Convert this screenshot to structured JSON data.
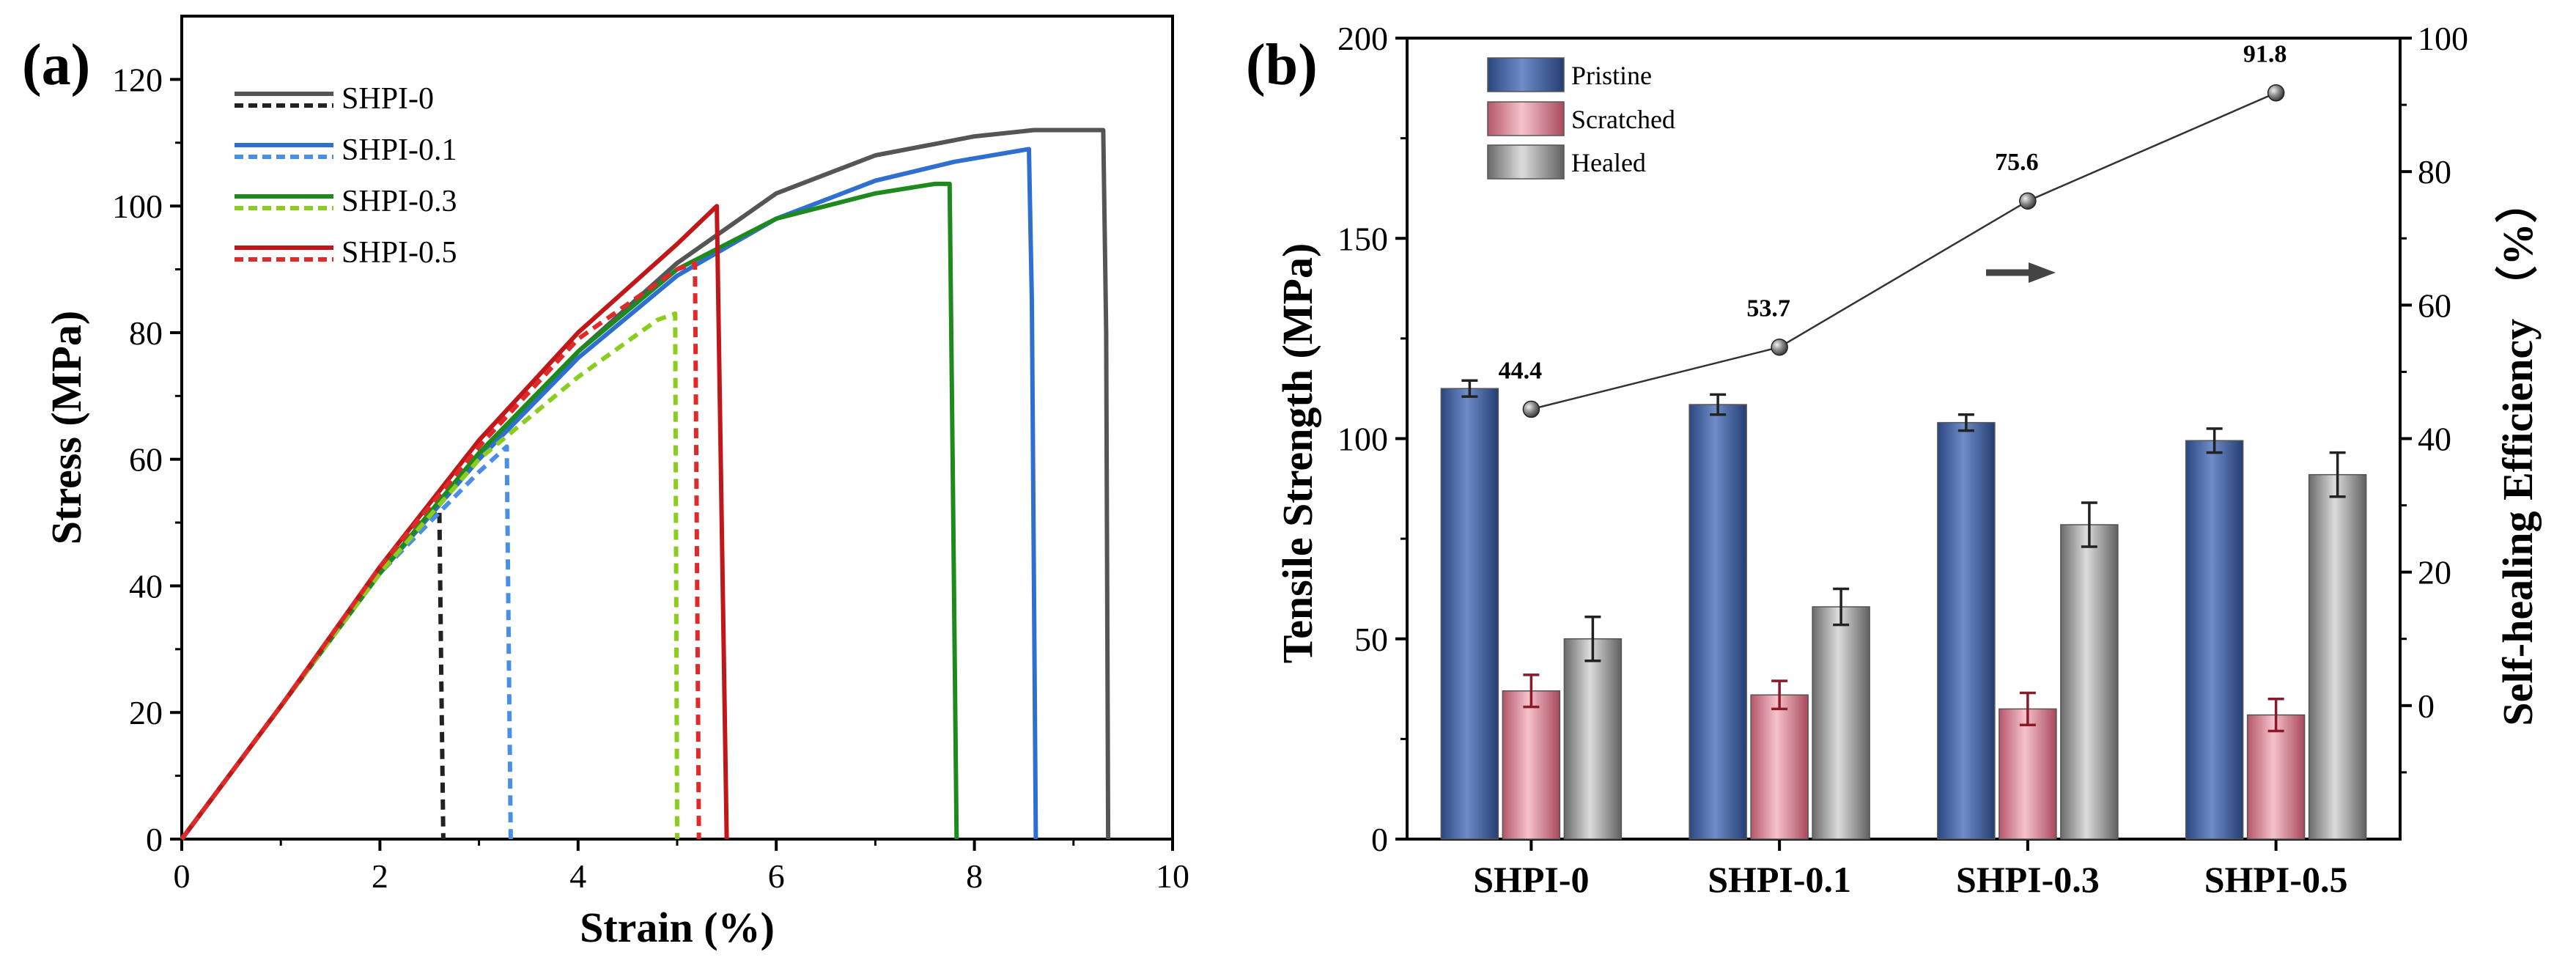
{
  "panel_a_label": "(a)",
  "panel_b_label": "(b)",
  "chart_data": [
    {
      "type": "line",
      "title": "",
      "xlabel": "Strain (%)",
      "ylabel": "Stress (MPa)",
      "xlim": [
        0,
        10
      ],
      "ylim": [
        0,
        130
      ],
      "xticks": [
        0,
        2,
        4,
        6,
        8,
        10
      ],
      "yticks": [
        0,
        20,
        40,
        60,
        80,
        100,
        120
      ],
      "legend": [
        {
          "name": "SHPI-0",
          "solid_color": "#555555",
          "dashed_color": "#222222"
        },
        {
          "name": "SHPI-0.1",
          "solid_color": "#2e6fd0",
          "dashed_color": "#4a8fe6"
        },
        {
          "name": "SHPI-0.3",
          "solid_color": "#1e8a1e",
          "dashed_color": "#8acd1e"
        },
        {
          "name": "SHPI-0.5",
          "solid_color": "#c01818",
          "dashed_color": "#e02a2a"
        }
      ],
      "series": [
        {
          "name": "SHPI-0",
          "style": "solid",
          "color": "#555555",
          "x": [
            0,
            1,
            2,
            3,
            4,
            5,
            6,
            7,
            8,
            8.6,
            9.3,
            9.33,
            9.35
          ],
          "y": [
            0,
            21,
            42,
            60,
            77,
            91,
            102,
            108,
            111,
            112,
            112,
            80,
            0
          ]
        },
        {
          "name": "SHPI-0",
          "style": "dashed",
          "color": "#222222",
          "x": [
            0,
            1,
            2,
            2.6,
            2.62,
            2.64
          ],
          "y": [
            0,
            21,
            42,
            52,
            25,
            0
          ]
        },
        {
          "name": "SHPI-0.1",
          "style": "solid",
          "color": "#2e6fd0",
          "x": [
            0,
            1,
            2,
            3,
            4,
            5,
            6,
            7,
            7.8,
            8.55,
            8.58,
            8.62
          ],
          "y": [
            0,
            21,
            42,
            60,
            76,
            89,
            98,
            104,
            107,
            109,
            85,
            0
          ]
        },
        {
          "name": "SHPI-0.1",
          "style": "dashed",
          "color": "#4a8fe6",
          "x": [
            0,
            1,
            2,
            3,
            3.28,
            3.3,
            3.32
          ],
          "y": [
            0,
            21,
            42,
            58,
            62,
            30,
            0
          ]
        },
        {
          "name": "SHPI-0.3",
          "style": "solid",
          "color": "#1e8a1e",
          "x": [
            0,
            1,
            2,
            3,
            4,
            5,
            6,
            7,
            7.6,
            7.75,
            7.78,
            7.82
          ],
          "y": [
            0,
            21,
            42,
            61,
            77,
            90,
            98,
            102,
            103.5,
            103.5,
            60,
            0
          ]
        },
        {
          "name": "SHPI-0.3",
          "style": "dashed",
          "color": "#8acd1e",
          "x": [
            0,
            1,
            2,
            3,
            4,
            4.8,
            4.98,
            5.0
          ],
          "y": [
            0,
            21,
            42,
            60,
            73,
            82,
            83,
            0
          ]
        },
        {
          "name": "SHPI-0.5",
          "style": "solid",
          "color": "#c01818",
          "x": [
            0,
            1,
            2,
            3,
            4,
            5,
            5.4,
            5.45,
            5.5
          ],
          "y": [
            0,
            21,
            43,
            63,
            80,
            94,
            100,
            50,
            0
          ]
        },
        {
          "name": "SHPI-0.5",
          "style": "dashed",
          "color": "#e02a2a",
          "x": [
            0,
            1,
            2,
            3,
            4,
            5,
            5.18,
            5.2,
            5.22
          ],
          "y": [
            0,
            21,
            43,
            62,
            79,
            90,
            91,
            45,
            0
          ]
        }
      ]
    },
    {
      "type": "bar",
      "title": "",
      "xlabel": "",
      "ylabel": "Tensile Strength (MPa)",
      "y2label": "Self-healing Efficiency （%）",
      "ylim": [
        0,
        200
      ],
      "yticks": [
        0,
        50,
        100,
        150,
        200
      ],
      "y2lim": [
        -20,
        100
      ],
      "y2ticks": [
        0,
        20,
        40,
        60,
        80,
        100
      ],
      "categories": [
        "SHPI-0",
        "SHPI-0.1",
        "SHPI-0.3",
        "SHPI-0.5"
      ],
      "series": [
        {
          "name": "Pristine",
          "color": "#3a5a9a",
          "values": [
            112.5,
            108.5,
            104,
            99.5
          ],
          "errors": [
            2,
            2.5,
            2,
            3
          ]
        },
        {
          "name": "Scratched",
          "color": "#e08a96",
          "values": [
            37,
            36,
            32.5,
            31
          ],
          "errors": [
            4,
            3.5,
            4,
            4
          ]
        },
        {
          "name": "Healed",
          "color": "#8a8a8a",
          "values": [
            50,
            58,
            78.5,
            91
          ],
          "errors": [
            5.5,
            4.5,
            5.5,
            5.5
          ]
        }
      ],
      "line_series": {
        "name": "Self-healing Efficiency",
        "axis": "y2",
        "values": [
          44.4,
          53.7,
          75.6,
          91.8
        ],
        "labels": [
          "44.4",
          "53.7",
          "75.6",
          "91.8"
        ]
      },
      "arrow_annotation": "points to right axis"
    }
  ]
}
